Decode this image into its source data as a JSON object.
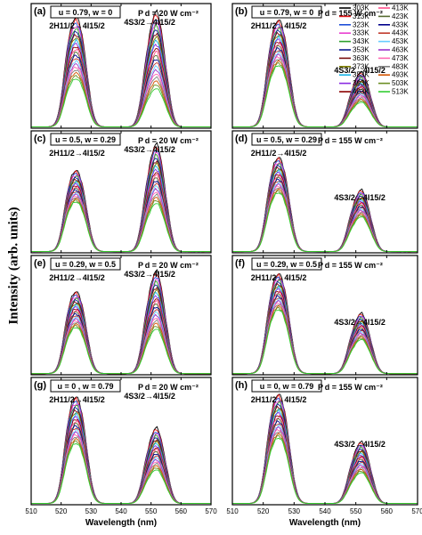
{
  "chart_data": {
    "type": "line",
    "ylabel": "Intensity (arb. units)",
    "xlabel": "Wavelength (nm)",
    "xlim": [
      510,
      570
    ],
    "xticks": [
      510,
      520,
      530,
      540,
      550,
      560,
      570
    ],
    "legend": {
      "placement": "top-right of panel (b)",
      "series": [
        {
          "name": "303K",
          "color": "#000000"
        },
        {
          "name": "313K",
          "color": "#e41a1c"
        },
        {
          "name": "323K",
          "color": "#1f4fd8"
        },
        {
          "name": "333K",
          "color": "#e83fd0"
        },
        {
          "name": "343K",
          "color": "#2ca02c"
        },
        {
          "name": "353K",
          "color": "#0b1a8f"
        },
        {
          "name": "363K",
          "color": "#7a0f0f"
        },
        {
          "name": "373K",
          "color": "#7f7f00"
        },
        {
          "name": "383K",
          "color": "#17b3e6"
        },
        {
          "name": "393K",
          "color": "#8a2be2"
        },
        {
          "name": "403K",
          "color": "#8b0000"
        },
        {
          "name": "413K",
          "color": "#ff4f8b"
        },
        {
          "name": "423K",
          "color": "#556b2f"
        },
        {
          "name": "433K",
          "color": "#00008b"
        },
        {
          "name": "443K",
          "color": "#c0392b"
        },
        {
          "name": "453K",
          "color": "#66ccff"
        },
        {
          "name": "463K",
          "color": "#9932cc"
        },
        {
          "name": "473K",
          "color": "#ff69b4"
        },
        {
          "name": "483K",
          "color": "#808080"
        },
        {
          "name": "493K",
          "color": "#d35400"
        },
        {
          "name": "503K",
          "color": "#6b8e23"
        },
        {
          "name": "513K",
          "color": "#32cd32"
        }
      ]
    },
    "panels": [
      {
        "id": "a",
        "label": "(a)",
        "params": "u = 0.79, w = 0",
        "power": "P d = 20 W cm⁻²",
        "peak1_label": "2H11/2→4I15/2",
        "peak2_label": "4S3/2→4I15/2",
        "peak1_nm": 525,
        "peak2_nm": 552,
        "peak1_max": 0.82,
        "peak2_max": 0.84,
        "peak1_min": 0.36,
        "peak2_min": 0.28
      },
      {
        "id": "b",
        "label": "(b)",
        "params": "u = 0.79, w = 0",
        "power": "P d = 155 W cm⁻²",
        "peak1_label": "2H11/2→4I15/2",
        "peak2_label": "4S3/2→4I15/2",
        "peak1_nm": 525,
        "peak2_nm": 552,
        "peak1_max": 0.8,
        "peak2_max": 0.4,
        "peak1_min": 0.46,
        "peak2_min": 0.18
      },
      {
        "id": "c",
        "label": "(c)",
        "params": "u = 0.5, w = 0.29",
        "power": "P d = 20 W cm⁻²",
        "peak1_label": "2H11/2→4I15/2",
        "peak2_label": "4S3/2→4I15/2",
        "peak1_nm": 525,
        "peak2_nm": 552,
        "peak1_max": 0.62,
        "peak2_max": 0.8,
        "peak1_min": 0.38,
        "peak2_min": 0.36
      },
      {
        "id": "d",
        "label": "(d)",
        "params": "u = 0.5, w = 0.29",
        "power": "P d = 155 W cm⁻²",
        "peak1_label": "2H11/2→4I15/2",
        "peak2_label": "4S3/2→4I15/2",
        "peak1_nm": 525,
        "peak2_nm": 552,
        "peak1_max": 0.72,
        "peak2_max": 0.46,
        "peak1_min": 0.45,
        "peak2_min": 0.26
      },
      {
        "id": "e",
        "label": "(e)",
        "params": "u = 0.29, w = 0.5",
        "power": "P d = 20 W cm⁻²",
        "peak1_label": "2H11/2→4I15/2",
        "peak2_label": "4S3/2→4I15/2",
        "peak1_nm": 525,
        "peak2_nm": 552,
        "peak1_max": 0.64,
        "peak2_max": 0.78,
        "peak1_min": 0.36,
        "peak2_min": 0.34
      },
      {
        "id": "f",
        "label": "(f)",
        "params": "u = 0.29, w = 0.5",
        "power": "P d = 155 W cm⁻²",
        "peak1_label": "2H11/2→4I15/2",
        "peak2_label": "4S3/2→4I15/2",
        "peak1_nm": 525,
        "peak2_nm": 552,
        "peak1_max": 0.78,
        "peak2_max": 0.46,
        "peak1_min": 0.5,
        "peak2_min": 0.26
      },
      {
        "id": "g",
        "label": "(g)",
        "params": "u = 0 , w = 0.79",
        "power": "P d = 20 W cm⁻²",
        "peak1_label": "2H11/2→4I15/2",
        "peak2_label": "4S3/2→4I15/2",
        "peak1_nm": 525,
        "peak2_nm": 552,
        "peak1_max": 0.78,
        "peak2_max": 0.54,
        "peak1_min": 0.44,
        "peak2_min": 0.24
      },
      {
        "id": "h",
        "label": "(h)",
        "params": "u = 0, w = 0.79",
        "power": "P d = 155 W cm⁻²",
        "peak1_label": "2H11/2→4I15/2",
        "peak2_label": "4S3/2→4I15/2",
        "peak1_nm": 525,
        "peak2_nm": 552,
        "peak1_max": 0.8,
        "peak2_max": 0.44,
        "peak1_min": 0.48,
        "peak2_min": 0.22
      }
    ]
  }
}
